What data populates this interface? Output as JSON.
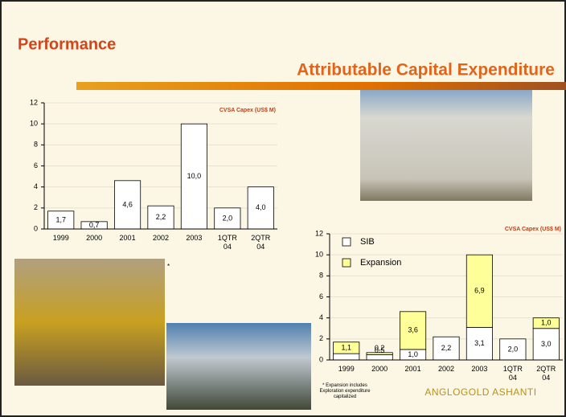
{
  "header": {
    "title": "Performance",
    "subtitle": "Attributable Capital Expenditure",
    "note_mark": "*",
    "footnote": "* Expansion includes Exploration expenditure capitalized",
    "logo": "ANGLOGOLD ASHANTI"
  },
  "chart_data": [
    {
      "type": "bar",
      "title": "CVSA Capex (US$ M)",
      "categories": [
        "1999",
        "2000",
        "2001",
        "2002",
        "2003",
        "1QTR 04",
        "2QTR 04"
      ],
      "values": [
        1.7,
        0.7,
        4.6,
        2.2,
        10.0,
        2.0,
        4.0
      ],
      "value_labels": [
        "1,7",
        "0,7",
        "4,6",
        "2,2",
        "10,0",
        "2,0",
        "4,0"
      ],
      "color": "#ffffff",
      "ylim": [
        0,
        12
      ],
      "yticks": [
        0,
        2,
        4,
        6,
        8,
        10,
        12
      ],
      "grid": true
    },
    {
      "type": "stacked_bar",
      "title": "CVSA Capex (US$ M)",
      "categories": [
        "1999",
        "2000",
        "2001",
        "2002",
        "2003",
        "1QTR 04",
        "2QTR 04"
      ],
      "series": [
        {
          "name": "SIB",
          "color": "#ffffff",
          "values": [
            0.6,
            0.5,
            1.0,
            2.2,
            3.1,
            2.0,
            3.0
          ],
          "value_labels": [
            "0,6",
            "0,5",
            "1,0",
            "2,2",
            "3,1",
            "2,0",
            "3,0"
          ]
        },
        {
          "name": "Expansion",
          "color": "#ffff99",
          "values": [
            1.1,
            0.2,
            3.6,
            null,
            6.9,
            null,
            1.0
          ],
          "value_labels": [
            "1,1",
            "0,2",
            "3,6",
            null,
            "6,9",
            null,
            "1,0"
          ]
        }
      ],
      "ylim": [
        0,
        12
      ],
      "yticks": [
        0,
        2,
        4,
        6,
        8,
        10,
        12
      ],
      "grid": true,
      "legend": "upper-left"
    }
  ]
}
